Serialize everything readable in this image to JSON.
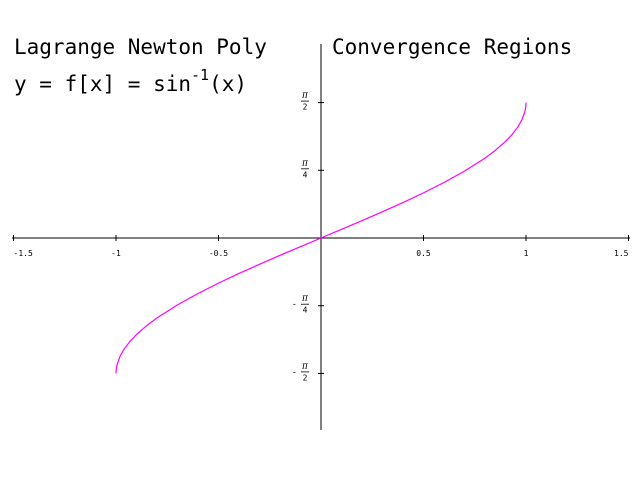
{
  "title_left": "Lagrange Newton Poly",
  "title_right": "Convergence Regions",
  "formula": {
    "lhs": "y = f[x] = ",
    "fn": "sin",
    "exp": "-1",
    "arg": "(x)"
  },
  "chart_data": {
    "type": "line",
    "xlim": [
      -1.5,
      1.5
    ],
    "ylim": [
      -1.5708,
      1.5708
    ],
    "grid": false,
    "x_ticks": [
      {
        "value": -1.5,
        "label": "-1.5"
      },
      {
        "value": -1,
        "label": "-1"
      },
      {
        "value": -0.5,
        "label": "-0.5"
      },
      {
        "value": 0.5,
        "label": "0.5"
      },
      {
        "value": 1,
        "label": "1"
      },
      {
        "value": 1.5,
        "label": "1.5"
      }
    ],
    "y_ticks": [
      {
        "value": 1.5708,
        "sign": "",
        "num": "π",
        "den": "2"
      },
      {
        "value": 0.7854,
        "sign": "",
        "num": "π",
        "den": "4"
      },
      {
        "value": -0.7854,
        "sign": "-",
        "num": "π",
        "den": "4"
      },
      {
        "value": -1.5708,
        "sign": "-",
        "num": "π",
        "den": "2"
      }
    ],
    "series": [
      {
        "color": "#ff00ff",
        "x": [
          -1,
          -0.999,
          -0.995,
          -0.98,
          -0.96,
          -0.93,
          -0.9,
          -0.85,
          -0.8,
          -0.7,
          -0.6,
          -0.5,
          -0.4,
          -0.3,
          -0.2,
          -0.1,
          0,
          0.1,
          0.2,
          0.3,
          0.4,
          0.5,
          0.6,
          0.7,
          0.8,
          0.85,
          0.9,
          0.93,
          0.96,
          0.98,
          0.995,
          0.999,
          1
        ],
        "y": [
          -1.5708,
          -1.5261,
          -1.4708,
          -1.3705,
          -1.287,
          -1.1944,
          -1.1198,
          -1.016,
          -0.9273,
          -0.7754,
          -0.6435,
          -0.5236,
          -0.4115,
          -0.3047,
          -0.2014,
          -0.1002,
          0,
          0.1002,
          0.2014,
          0.3047,
          0.4115,
          0.5236,
          0.6435,
          0.7754,
          0.9273,
          1.016,
          1.1198,
          1.1944,
          1.287,
          1.3705,
          1.4708,
          1.5261,
          1.5708
        ]
      }
    ]
  }
}
